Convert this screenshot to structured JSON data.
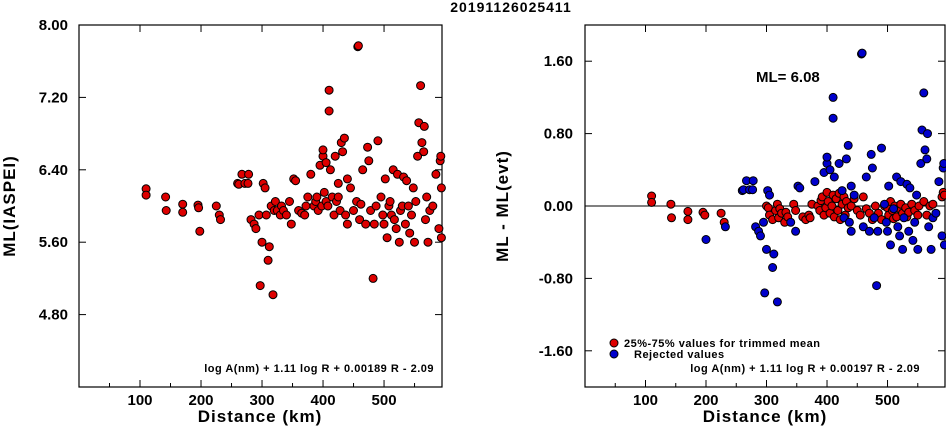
{
  "title": "20191126025411",
  "colors": {
    "kept": "#dd0000",
    "rejected": "#0000cc",
    "edge": "#000000"
  },
  "chart_data": [
    {
      "type": "scatter",
      "xlabel": "Distance (km)",
      "ylabel": "ML(IASPEI)",
      "xlim": [
        0,
        595
      ],
      "ylim": [
        4.0,
        8.0
      ],
      "xticks": [
        100,
        200,
        300,
        400,
        500
      ],
      "yticks": [
        4.8,
        5.6,
        6.4,
        7.2,
        8.0
      ],
      "ytick_labels": [
        "4.80",
        "5.60",
        "6.40",
        "7.20",
        "8.00"
      ],
      "formula": "log A(nm) + 1.11 log R + 0.00189 R - 2.09",
      "points": [
        [
          110,
          6.19
        ],
        [
          110,
          6.12
        ],
        [
          142,
          6.1
        ],
        [
          143,
          5.95
        ],
        [
          170,
          6.02
        ],
        [
          170,
          5.93
        ],
        [
          195,
          6.01
        ],
        [
          196,
          5.98
        ],
        [
          198,
          5.72
        ],
        [
          225,
          6.0
        ],
        [
          230,
          5.9
        ],
        [
          232,
          5.85
        ],
        [
          260,
          6.25
        ],
        [
          262,
          6.24
        ],
        [
          267,
          6.35
        ],
        [
          272,
          6.25
        ],
        [
          277,
          6.25
        ],
        [
          278,
          6.35
        ],
        [
          282,
          5.85
        ],
        [
          287,
          5.8
        ],
        [
          290,
          5.75
        ],
        [
          295,
          5.9
        ],
        [
          297,
          5.12
        ],
        [
          300,
          5.6
        ],
        [
          302,
          6.25
        ],
        [
          305,
          6.2
        ],
        [
          307,
          5.9
        ],
        [
          310,
          5.4
        ],
        [
          312,
          5.55
        ],
        [
          315,
          6.0
        ],
        [
          318,
          5.02
        ],
        [
          320,
          5.95
        ],
        [
          322,
          6.05
        ],
        [
          325,
          5.95
        ],
        [
          330,
          5.9
        ],
        [
          332,
          6.0
        ],
        [
          335,
          5.95
        ],
        [
          340,
          5.9
        ],
        [
          345,
          6.05
        ],
        [
          348,
          5.8
        ],
        [
          352,
          6.3
        ],
        [
          355,
          6.28
        ],
        [
          360,
          5.95
        ],
        [
          365,
          5.92
        ],
        [
          370,
          5.9
        ],
        [
          372,
          6.0
        ],
        [
          375,
          6.1
        ],
        [
          380,
          6.35
        ],
        [
          385,
          6.0
        ],
        [
          388,
          6.05
        ],
        [
          390,
          6.1
        ],
        [
          392,
          5.95
        ],
        [
          395,
          6.45
        ],
        [
          398,
          6.0
        ],
        [
          400,
          6.55
        ],
        [
          400,
          6.62
        ],
        [
          402,
          6.15
        ],
        [
          405,
          6.05
        ],
        [
          405,
          6.48
        ],
        [
          408,
          6.0
        ],
        [
          410,
          7.05
        ],
        [
          410,
          7.28
        ],
        [
          412,
          6.4
        ],
        [
          415,
          6.1
        ],
        [
          418,
          5.9
        ],
        [
          420,
          6.55
        ],
        [
          422,
          6.05
        ],
        [
          425,
          6.1
        ],
        [
          425,
          6.25
        ],
        [
          428,
          5.95
        ],
        [
          430,
          6.7
        ],
        [
          432,
          6.6
        ],
        [
          435,
          6.75
        ],
        [
          437,
          5.9
        ],
        [
          440,
          5.8
        ],
        [
          440,
          6.3
        ],
        [
          445,
          6.2
        ],
        [
          450,
          5.95
        ],
        [
          455,
          6.05
        ],
        [
          457,
          7.76
        ],
        [
          458,
          7.77
        ],
        [
          460,
          5.85
        ],
        [
          462,
          6.02
        ],
        [
          465,
          6.4
        ],
        [
          470,
          5.8
        ],
        [
          473,
          6.65
        ],
        [
          475,
          6.5
        ],
        [
          478,
          5.95
        ],
        [
          482,
          5.2
        ],
        [
          484,
          5.8
        ],
        [
          487,
          6.0
        ],
        [
          490,
          6.72
        ],
        [
          495,
          6.1
        ],
        [
          498,
          5.9
        ],
        [
          500,
          5.8
        ],
        [
          502,
          6.3
        ],
        [
          505,
          5.65
        ],
        [
          508,
          6.0
        ],
        [
          510,
          6.05
        ],
        [
          512,
          5.9
        ],
        [
          515,
          6.4
        ],
        [
          517,
          5.85
        ],
        [
          520,
          5.75
        ],
        [
          522,
          6.35
        ],
        [
          525,
          5.6
        ],
        [
          527,
          5.95
        ],
        [
          530,
          6.0
        ],
        [
          532,
          6.32
        ],
        [
          535,
          5.8
        ],
        [
          537,
          6.28
        ],
        [
          540,
          6.0
        ],
        [
          542,
          5.7
        ],
        [
          545,
          5.9
        ],
        [
          548,
          6.2
        ],
        [
          550,
          5.6
        ],
        [
          552,
          6.05
        ],
        [
          555,
          6.55
        ],
        [
          557,
          6.92
        ],
        [
          560,
          7.33
        ],
        [
          562,
          6.7
        ],
        [
          565,
          6.6
        ],
        [
          566,
          6.88
        ],
        [
          568,
          5.85
        ],
        [
          570,
          6.1
        ],
        [
          572,
          5.6
        ],
        [
          575,
          5.95
        ],
        [
          580,
          6.0
        ],
        [
          585,
          6.35
        ],
        [
          590,
          5.75
        ],
        [
          592,
          6.5
        ],
        [
          593,
          6.55
        ],
        [
          594,
          6.2
        ],
        [
          594,
          5.65
        ]
      ]
    },
    {
      "type": "scatter",
      "xlabel": "Distance (km)",
      "ylabel": "ML - ML(evt)",
      "xlim": [
        0,
        595
      ],
      "ylim": [
        -2.0,
        2.0
      ],
      "xticks": [
        100,
        200,
        300,
        400,
        500
      ],
      "yticks": [
        -1.6,
        -0.8,
        0.0,
        0.8,
        1.6
      ],
      "ytick_labels": [
        "-1.60",
        "-0.80",
        "0.00",
        "0.80",
        "1.60"
      ],
      "annotation": "ML= 6.08",
      "legend": [
        "25%-75% values for trimmed mean",
        "Rejected values"
      ],
      "formula": "log A(nm) + 1.11 log R + 0.00197 R - 2.09",
      "kept": [
        [
          110,
          0.11
        ],
        [
          110,
          0.04
        ],
        [
          142,
          0.02
        ],
        [
          143,
          -0.13
        ],
        [
          170,
          -0.06
        ],
        [
          170,
          -0.15
        ],
        [
          195,
          -0.07
        ],
        [
          198,
          -0.1
        ],
        [
          225,
          -0.08
        ],
        [
          230,
          -0.18
        ],
        [
          300,
          0.0
        ],
        [
          303,
          -0.02
        ],
        [
          305,
          -0.1
        ],
        [
          310,
          -0.15
        ],
        [
          315,
          -0.05
        ],
        [
          318,
          0.02
        ],
        [
          320,
          -0.13
        ],
        [
          322,
          -0.03
        ],
        [
          325,
          -0.08
        ],
        [
          330,
          -0.18
        ],
        [
          332,
          -0.07
        ],
        [
          335,
          -0.12
        ],
        [
          345,
          0.02
        ],
        [
          348,
          -0.05
        ],
        [
          360,
          -0.12
        ],
        [
          365,
          -0.15
        ],
        [
          370,
          -0.1
        ],
        [
          372,
          -0.13
        ],
        [
          375,
          0.02
        ],
        [
          385,
          0.0
        ],
        [
          388,
          -0.05
        ],
        [
          390,
          0.06
        ],
        [
          392,
          0.1
        ],
        [
          395,
          -0.1
        ],
        [
          398,
          -0.02
        ],
        [
          400,
          0.15
        ],
        [
          402,
          0.05
        ],
        [
          405,
          -0.08
        ],
        [
          408,
          0.0
        ],
        [
          410,
          0.12
        ],
        [
          412,
          -0.12
        ],
        [
          415,
          0.08
        ],
        [
          418,
          -0.05
        ],
        [
          420,
          0.14
        ],
        [
          422,
          -0.15
        ],
        [
          425,
          0.02
        ],
        [
          428,
          0.1
        ],
        [
          430,
          -0.1
        ],
        [
          432,
          0.05
        ],
        [
          435,
          -0.02
        ],
        [
          440,
          0.0
        ],
        [
          445,
          0.08
        ],
        [
          450,
          -0.05
        ],
        [
          455,
          -0.1
        ],
        [
          460,
          0.1
        ],
        [
          465,
          -0.03
        ],
        [
          470,
          -0.08
        ],
        [
          475,
          -0.15
        ],
        [
          480,
          0.0
        ],
        [
          485,
          -0.08
        ],
        [
          490,
          -0.15
        ],
        [
          495,
          0.0
        ],
        [
          500,
          -0.02
        ],
        [
          502,
          -0.1
        ],
        [
          505,
          0.05
        ],
        [
          508,
          -0.05
        ],
        [
          510,
          -0.14
        ],
        [
          512,
          0.0
        ],
        [
          515,
          -0.12
        ],
        [
          520,
          -0.03
        ],
        [
          522,
          0.02
        ],
        [
          525,
          -0.08
        ],
        [
          530,
          -0.02
        ],
        [
          532,
          -0.12
        ],
        [
          535,
          -0.07
        ],
        [
          540,
          0.02
        ],
        [
          545,
          -0.05
        ],
        [
          550,
          -0.1
        ],
        [
          552,
          0.0
        ],
        [
          560,
          0.05
        ],
        [
          565,
          -0.1
        ],
        [
          570,
          0.0
        ],
        [
          575,
          0.02
        ],
        [
          590,
          0.1
        ],
        [
          592,
          0.15
        ],
        [
          594,
          0.12
        ]
      ],
      "rejected": [
        [
          200,
          -0.37
        ],
        [
          232,
          -0.23
        ],
        [
          260,
          0.17
        ],
        [
          262,
          0.18
        ],
        [
          267,
          0.28
        ],
        [
          272,
          0.18
        ],
        [
          277,
          0.18
        ],
        [
          278,
          0.28
        ],
        [
          282,
          -0.23
        ],
        [
          287,
          -0.28
        ],
        [
          290,
          -0.33
        ],
        [
          295,
          -0.18
        ],
        [
          297,
          -0.96
        ],
        [
          300,
          -0.48
        ],
        [
          302,
          0.17
        ],
        [
          305,
          0.12
        ],
        [
          310,
          -0.68
        ],
        [
          312,
          -0.53
        ],
        [
          318,
          -1.06
        ],
        [
          340,
          -0.18
        ],
        [
          348,
          -0.28
        ],
        [
          352,
          0.22
        ],
        [
          355,
          0.2
        ],
        [
          380,
          0.27
        ],
        [
          395,
          0.37
        ],
        [
          400,
          0.47
        ],
        [
          400,
          0.54
        ],
        [
          405,
          0.4
        ],
        [
          410,
          0.97
        ],
        [
          410,
          1.2
        ],
        [
          412,
          0.32
        ],
        [
          420,
          0.47
        ],
        [
          425,
          0.17
        ],
        [
          428,
          -0.13
        ],
        [
          432,
          0.52
        ],
        [
          435,
          0.67
        ],
        [
          437,
          -0.18
        ],
        [
          440,
          -0.28
        ],
        [
          440,
          0.22
        ],
        [
          445,
          0.12
        ],
        [
          457,
          1.68
        ],
        [
          458,
          1.69
        ],
        [
          460,
          -0.23
        ],
        [
          465,
          0.32
        ],
        [
          470,
          -0.28
        ],
        [
          473,
          0.57
        ],
        [
          475,
          0.42
        ],
        [
          478,
          -0.13
        ],
        [
          482,
          -0.88
        ],
        [
          484,
          -0.28
        ],
        [
          490,
          0.64
        ],
        [
          495,
          0.02
        ],
        [
          498,
          -0.18
        ],
        [
          500,
          -0.28
        ],
        [
          502,
          0.22
        ],
        [
          505,
          -0.43
        ],
        [
          510,
          -0.03
        ],
        [
          515,
          0.32
        ],
        [
          517,
          -0.23
        ],
        [
          520,
          -0.33
        ],
        [
          522,
          0.27
        ],
        [
          525,
          -0.48
        ],
        [
          527,
          -0.13
        ],
        [
          532,
          0.24
        ],
        [
          535,
          -0.28
        ],
        [
          537,
          0.2
        ],
        [
          542,
          -0.38
        ],
        [
          545,
          -0.18
        ],
        [
          548,
          0.12
        ],
        [
          550,
          -0.48
        ],
        [
          555,
          0.47
        ],
        [
          557,
          0.84
        ],
        [
          560,
          1.25
        ],
        [
          562,
          0.62
        ],
        [
          565,
          0.52
        ],
        [
          566,
          0.8
        ],
        [
          568,
          -0.23
        ],
        [
          572,
          -0.48
        ],
        [
          575,
          -0.13
        ],
        [
          580,
          -0.08
        ],
        [
          585,
          0.27
        ],
        [
          590,
          -0.33
        ],
        [
          592,
          0.42
        ],
        [
          593,
          0.47
        ],
        [
          594,
          -0.43
        ]
      ]
    }
  ]
}
